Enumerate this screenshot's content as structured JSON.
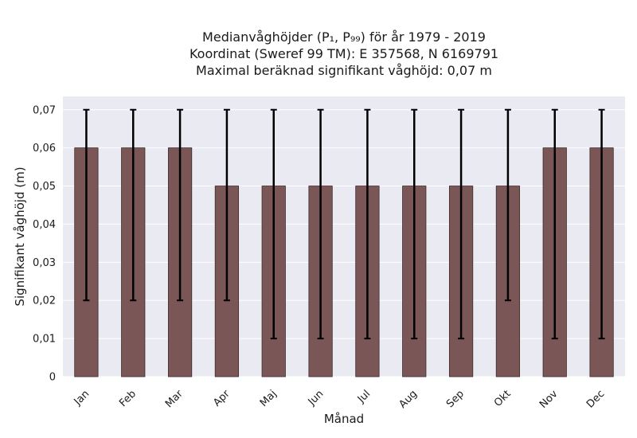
{
  "chart_data": {
    "type": "bar",
    "title_lines": [
      "Medianvåghöjder (P₁, P₉₉) för år 1979 - 2019",
      "Koordinat (Sweref 99 TM): E 357568, N 6169791",
      "Maximal beräknad signifikant våghöjd: 0,07 m"
    ],
    "xlabel": "Månad",
    "ylabel": "Signifikant våghöjd (m)",
    "categories": [
      "Jan",
      "Feb",
      "Mar",
      "Apr",
      "Maj",
      "Jun",
      "Jul",
      "Aug",
      "Sep",
      "Okt",
      "Nov",
      "Dec"
    ],
    "values": [
      0.06,
      0.06,
      0.06,
      0.05,
      0.05,
      0.05,
      0.05,
      0.05,
      0.05,
      0.05,
      0.06,
      0.06
    ],
    "error_low": [
      0.02,
      0.02,
      0.02,
      0.02,
      0.01,
      0.01,
      0.01,
      0.01,
      0.01,
      0.02,
      0.01,
      0.01
    ],
    "error_high": [
      0.07,
      0.07,
      0.07,
      0.07,
      0.07,
      0.07,
      0.07,
      0.07,
      0.07,
      0.07,
      0.07,
      0.07
    ],
    "yticks": [
      0,
      0.01,
      0.02,
      0.03,
      0.04,
      0.05,
      0.06,
      0.07
    ],
    "ytick_labels": [
      "0",
      "0,01",
      "0,02",
      "0,03",
      "0,04",
      "0,05",
      "0,06",
      "0,07"
    ],
    "ylim": [
      0,
      0.0735
    ],
    "grid": true,
    "colors": {
      "bar": "#7a5656",
      "bar_edge": "#3e2a2a",
      "plot_bg": "#eaeaf2",
      "grid": "#ffffff",
      "error": "#000000"
    }
  }
}
